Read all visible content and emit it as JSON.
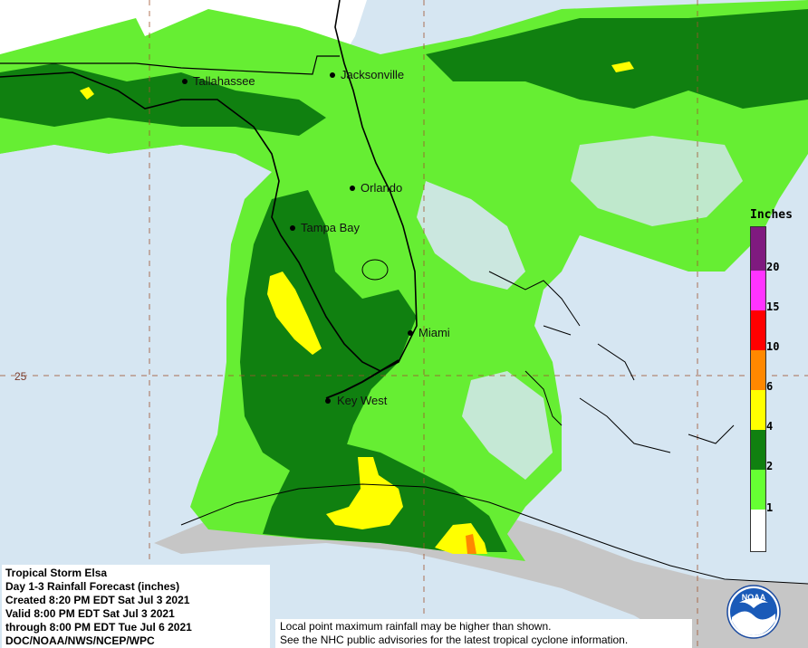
{
  "legend": {
    "title": "Inches",
    "ticks": [
      "20",
      "15",
      "10",
      "6",
      "4",
      "2",
      "1"
    ],
    "colors": [
      "#7f1a7f",
      "#ff33ff",
      "#ff0000",
      "#ff8800",
      "#ffff00",
      "#108010",
      "#66ff33",
      "#ffffff"
    ]
  },
  "cities": [
    {
      "name": "Tallahassee"
    },
    {
      "name": "Jacksonville"
    },
    {
      "name": "Orlando"
    },
    {
      "name": "Tampa Bay"
    },
    {
      "name": "Miami"
    },
    {
      "name": "Key West"
    }
  ],
  "grid": {
    "lat_label": "25"
  },
  "info": {
    "line1": "Tropical Storm Elsa",
    "line2": "Day 1-3 Rainfall Forecast (inches)",
    "line3": "Created 8:20 PM EDT Sat Jul 3 2021",
    "line4": "Valid 8:00 PM EDT Sat Jul 3 2021",
    "line5": "through 8:00 PM EDT Tue Jul 6 2021",
    "line6": "DOC/NOAA/NWS/NCEP/WPC"
  },
  "note": {
    "line1": "Local point maximum rainfall may be higher than shown.",
    "line2": "See the NHC public advisories for the latest tropical cyclone information."
  },
  "logo": {
    "text": "NOAA"
  }
}
